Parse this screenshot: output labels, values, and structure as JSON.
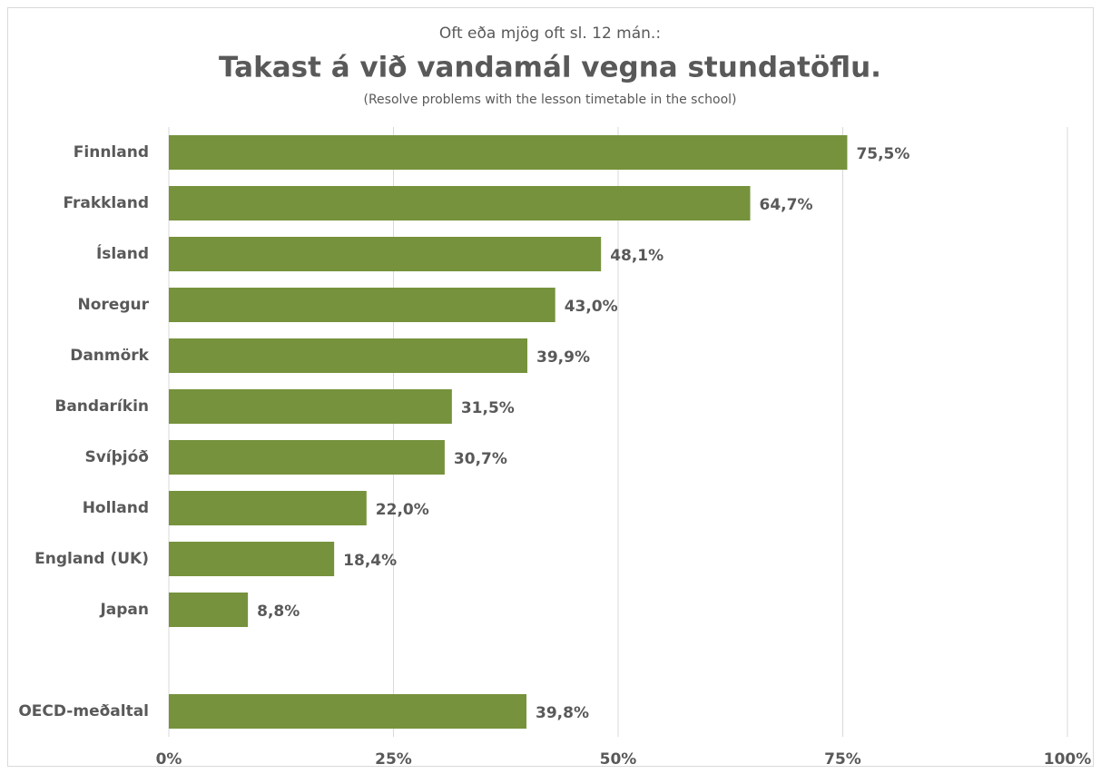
{
  "chart_data": {
    "type": "bar",
    "orientation": "horizontal",
    "pretitle": "Oft eða mjög oft sl. 12 mán.:",
    "title": "Takast á við vandamál vegna stundatöflu.",
    "subtitle": "(Resolve problems with the lesson timetable in the school)",
    "categories": [
      "Finnland",
      "Frakkland",
      "Ísland",
      "Noregur",
      "Danmörk",
      "Bandaríkin",
      "Svíþjóð",
      "Holland",
      "England (UK)",
      "Japan",
      null,
      "OECD-meðaltal"
    ],
    "values": [
      75.5,
      64.7,
      48.1,
      43.0,
      39.9,
      31.5,
      30.7,
      22.0,
      18.4,
      8.8,
      null,
      39.8
    ],
    "value_labels": [
      "75,5%",
      "64,7%",
      "48,1%",
      "43,0%",
      "39,9%",
      "31,5%",
      "30,7%",
      "22,0%",
      "18,4%",
      "8,8%",
      null,
      "39,8%"
    ],
    "color": "#76923c",
    "xlim": [
      0,
      100
    ],
    "xticks": [
      {
        "value": 0,
        "label": "0%"
      },
      {
        "value": 25,
        "label": "25%"
      },
      {
        "value": 50,
        "label": "50%"
      },
      {
        "value": 75,
        "label": "75%"
      },
      {
        "value": 100,
        "label": "100%"
      }
    ],
    "grid": true
  }
}
